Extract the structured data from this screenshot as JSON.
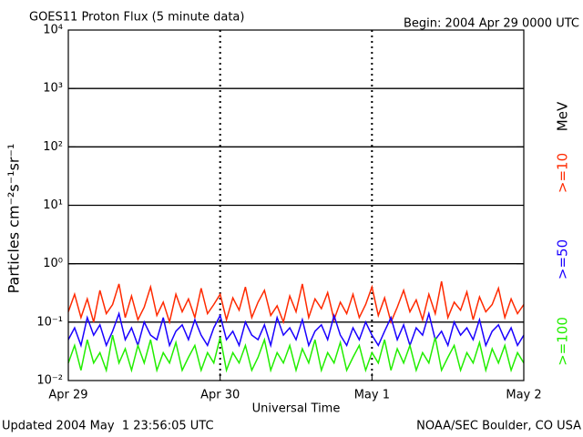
{
  "chart_data": {
    "type": "line",
    "title": "GOES11 Proton Flux (5 minute data)",
    "subtitle": "Begin: 2004 Apr 29 0000 UTC",
    "y_label": "Particles cm⁻²s⁻¹sr⁻¹",
    "x_label": "Universal Time",
    "legend_unit": "MeV",
    "footer_left": "Updated 2004 May  1 23:56:05 UTC",
    "footer_right": "NOAA/SEC Boulder, CO USA",
    "log_y": true,
    "grid": true,
    "xlim": [
      0,
      72
    ],
    "xticks": [
      {
        "value": 0,
        "label": "Apr 29"
      },
      {
        "value": 24,
        "label": "Apr 30"
      },
      {
        "value": 48,
        "label": "May 1"
      },
      {
        "value": 72,
        "label": "May 2"
      }
    ],
    "ylim": [
      0.01,
      10000
    ],
    "yticks": [
      {
        "value": 0.01,
        "label": "10⁻²"
      },
      {
        "value": 0.1,
        "label": "10⁻¹"
      },
      {
        "value": 1,
        "label": "10⁰"
      },
      {
        "value": 10,
        "label": "10¹"
      },
      {
        "value": 100,
        "label": "10²"
      },
      {
        "value": 1000,
        "label": "10³"
      },
      {
        "value": 10000,
        "label": "10⁴"
      }
    ],
    "x": [
      0,
      1,
      2,
      3,
      4,
      5,
      6,
      7,
      8,
      9,
      10,
      11,
      12,
      13,
      14,
      15,
      16,
      17,
      18,
      19,
      20,
      21,
      22,
      23,
      24,
      25,
      26,
      27,
      28,
      29,
      30,
      31,
      32,
      33,
      34,
      35,
      36,
      37,
      38,
      39,
      40,
      41,
      42,
      43,
      44,
      45,
      46,
      47,
      48,
      49,
      50,
      51,
      52,
      53,
      54,
      55,
      56,
      57,
      58,
      59,
      60,
      61,
      62,
      63,
      64,
      65,
      66,
      67,
      68,
      69,
      70,
      71,
      72
    ],
    "series": [
      {
        "name": ">=10",
        "color": "#ff2a00",
        "values": [
          0.15,
          0.3,
          0.12,
          0.25,
          0.1,
          0.35,
          0.14,
          0.2,
          0.45,
          0.12,
          0.28,
          0.11,
          0.18,
          0.4,
          0.13,
          0.22,
          0.1,
          0.3,
          0.15,
          0.25,
          0.12,
          0.38,
          0.14,
          0.2,
          0.3,
          0.11,
          0.26,
          0.16,
          0.4,
          0.12,
          0.22,
          0.35,
          0.13,
          0.19,
          0.1,
          0.28,
          0.15,
          0.45,
          0.12,
          0.25,
          0.17,
          0.32,
          0.11,
          0.22,
          0.14,
          0.3,
          0.12,
          0.2,
          0.4,
          0.13,
          0.26,
          0.1,
          0.18,
          0.35,
          0.15,
          0.24,
          0.11,
          0.3,
          0.14,
          0.5,
          0.12,
          0.22,
          0.16,
          0.33,
          0.11,
          0.27,
          0.15,
          0.2,
          0.38,
          0.12,
          0.25,
          0.14,
          0.2
        ]
      },
      {
        "name": ">=50",
        "color": "#1a00ff",
        "values": [
          0.05,
          0.08,
          0.04,
          0.12,
          0.06,
          0.09,
          0.04,
          0.07,
          0.14,
          0.05,
          0.08,
          0.04,
          0.1,
          0.06,
          0.05,
          0.12,
          0.04,
          0.07,
          0.09,
          0.05,
          0.11,
          0.06,
          0.04,
          0.08,
          0.13,
          0.05,
          0.07,
          0.04,
          0.1,
          0.06,
          0.05,
          0.09,
          0.04,
          0.12,
          0.06,
          0.08,
          0.05,
          0.11,
          0.04,
          0.07,
          0.09,
          0.05,
          0.13,
          0.06,
          0.04,
          0.08,
          0.05,
          0.1,
          0.06,
          0.04,
          0.07,
          0.12,
          0.05,
          0.09,
          0.04,
          0.08,
          0.06,
          0.14,
          0.05,
          0.07,
          0.04,
          0.1,
          0.06,
          0.08,
          0.05,
          0.11,
          0.04,
          0.07,
          0.09,
          0.05,
          0.08,
          0.04,
          0.06
        ]
      },
      {
        "name": ">=100",
        "color": "#22ee00",
        "values": [
          0.02,
          0.04,
          0.015,
          0.05,
          0.02,
          0.03,
          0.015,
          0.06,
          0.02,
          0.035,
          0.015,
          0.04,
          0.02,
          0.05,
          0.015,
          0.03,
          0.02,
          0.045,
          0.015,
          0.025,
          0.04,
          0.015,
          0.03,
          0.02,
          0.055,
          0.015,
          0.03,
          0.02,
          0.04,
          0.015,
          0.025,
          0.05,
          0.015,
          0.03,
          0.02,
          0.04,
          0.015,
          0.035,
          0.02,
          0.05,
          0.015,
          0.03,
          0.02,
          0.045,
          0.015,
          0.025,
          0.04,
          0.015,
          0.03,
          0.02,
          0.05,
          0.015,
          0.035,
          0.02,
          0.04,
          0.015,
          0.03,
          0.02,
          0.055,
          0.015,
          0.025,
          0.04,
          0.015,
          0.03,
          0.02,
          0.045,
          0.015,
          0.035,
          0.02,
          0.04,
          0.015,
          0.03,
          0.02
        ]
      }
    ]
  }
}
